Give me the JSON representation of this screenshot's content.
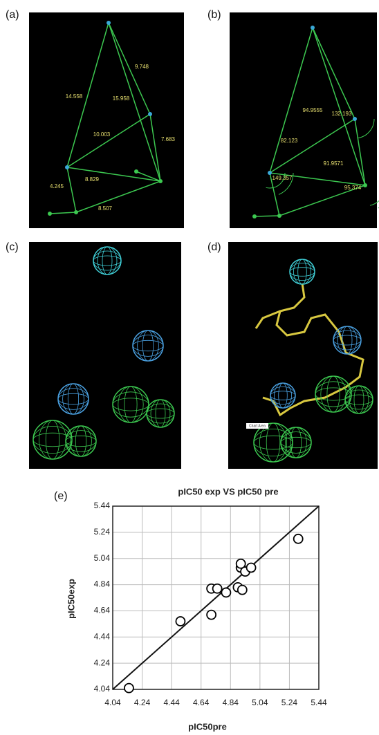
{
  "panels": {
    "a": {
      "label": "(a)",
      "labels": [
        "14.558",
        "9.748",
        "15.958",
        "10.003",
        "7.683",
        "4.245",
        "8.829",
        "8.507"
      ]
    },
    "b": {
      "label": "(b)",
      "labels": [
        "94.9555",
        "132.193",
        "82.123",
        "149.357",
        "91.9571",
        "95.374"
      ]
    },
    "c": {
      "label": "(c)"
    },
    "d": {
      "label": "(d)",
      "tag": "Chart Area"
    },
    "e": {
      "label": "(e)"
    }
  },
  "chart_data": {
    "type": "scatter",
    "title": "pIC50 exp VS pIC50 pre",
    "x_label": "pIC50pre",
    "y_label": "pIC50exp",
    "x": [
      4.15,
      4.5,
      4.71,
      4.71,
      4.75,
      4.81,
      4.89,
      4.92,
      4.91,
      4.91,
      4.94,
      4.98,
      5.3
    ],
    "y": [
      4.05,
      4.56,
      4.61,
      4.81,
      4.81,
      4.78,
      4.82,
      4.8,
      4.97,
      5.0,
      4.94,
      4.97,
      5.19
    ],
    "xlim": [
      4.04,
      5.44
    ],
    "ylim": [
      4.04,
      5.44
    ],
    "xticks": [
      4.04,
      4.24,
      4.44,
      4.64,
      4.84,
      5.04,
      5.24,
      5.44
    ],
    "yticks": [
      4.04,
      4.24,
      4.44,
      4.64,
      4.84,
      5.04,
      5.24,
      5.44
    ],
    "grid": true,
    "color": "#000000"
  }
}
